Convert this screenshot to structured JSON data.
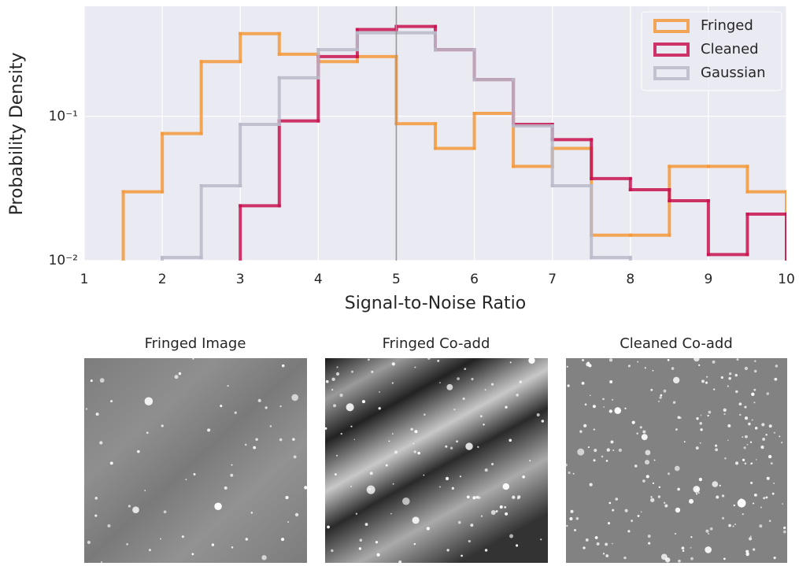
{
  "chart_data": {
    "type": "histogram",
    "xlabel": "Signal-to-Noise Ratio",
    "ylabel": "Probability Density",
    "bins": [
      1.5,
      2,
      2.5,
      3,
      3.5,
      4,
      4.5,
      5,
      5.5,
      6,
      6.5,
      7,
      7.5,
      8,
      8.5,
      9,
      9.5,
      10
    ],
    "series": [
      {
        "name": "Fringed",
        "color": "#f5993b",
        "values": [
          0.03,
          0.076,
          0.24,
          0.375,
          0.27,
          0.24,
          0.26,
          0.089,
          0.06,
          0.105,
          0.045,
          0.06,
          0.015,
          0.015,
          0.045,
          0.045,
          0.03
        ]
      },
      {
        "name": "Cleaned",
        "color": "#c8124f",
        "values": [
          null,
          null,
          null,
          0.024,
          0.093,
          0.26,
          0.4,
          0.42,
          0.29,
          0.18,
          0.088,
          0.069,
          0.037,
          0.031,
          0.026,
          0.011,
          0.021
        ]
      },
      {
        "name": "Gaussian",
        "color": "#b9b9c8",
        "values": [
          null,
          0.0105,
          0.033,
          0.088,
          0.185,
          0.29,
          0.38,
          0.38,
          0.29,
          0.18,
          0.086,
          0.033,
          0.0105,
          null,
          null,
          null,
          null
        ]
      }
    ],
    "xlim": [
      1,
      10
    ],
    "xticks": [
      1,
      2,
      3,
      4,
      5,
      6,
      7,
      8,
      9,
      10
    ],
    "ylim": [
      0.01,
      0.58
    ],
    "yscale": "log",
    "yticks": [
      {
        "value": 0.01,
        "label": "10⁻²"
      },
      {
        "value": 0.1,
        "label": "10⁻¹"
      }
    ],
    "grid": true,
    "legend": "upper right",
    "vline": 5
  },
  "panels": [
    {
      "title": "Fringed Image"
    },
    {
      "title": "Fringed Co-add"
    },
    {
      "title": "Cleaned Co-add"
    }
  ]
}
